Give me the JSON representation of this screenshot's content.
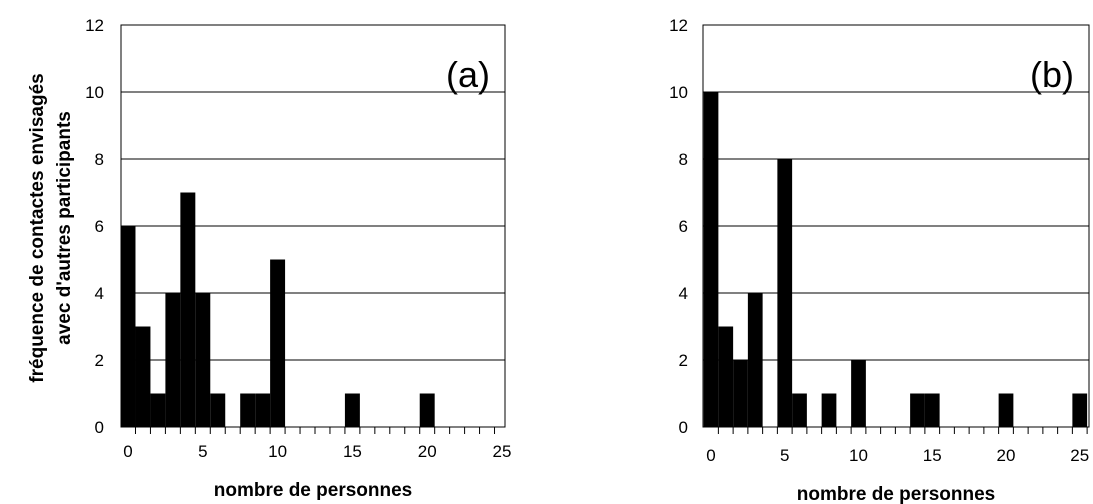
{
  "chart_data": [
    {
      "type": "bar",
      "panel_label": "(a)",
      "x": [
        0,
        1,
        2,
        3,
        4,
        5,
        6,
        7,
        8,
        9,
        10,
        11,
        12,
        13,
        14,
        15,
        16,
        17,
        18,
        19,
        20,
        21,
        22,
        23,
        24,
        25
      ],
      "values": [
        6,
        3,
        1,
        4,
        7,
        4,
        1,
        0,
        1,
        1,
        5,
        0,
        0,
        0,
        0,
        1,
        0,
        0,
        0,
        0,
        1,
        0,
        0,
        0,
        0,
        0
      ],
      "xlabel": "nombre de personnes",
      "ylabel_line1": "fréquence de contactes envisagés",
      "ylabel_line2": "avec d'autres participants",
      "xlim": [
        0,
        25
      ],
      "ylim": [
        0,
        12
      ],
      "x_ticks": [
        "0",
        "5",
        "10",
        "15",
        "20",
        "25"
      ],
      "y_ticks": [
        "0",
        "2",
        "4",
        "6",
        "8",
        "10",
        "12"
      ],
      "grid": "horizontal"
    },
    {
      "type": "bar",
      "panel_label": "(b)",
      "x": [
        0,
        1,
        2,
        3,
        4,
        5,
        6,
        7,
        8,
        9,
        10,
        11,
        12,
        13,
        14,
        15,
        16,
        17,
        18,
        19,
        20,
        21,
        22,
        23,
        24,
        25
      ],
      "values": [
        10,
        3,
        2,
        4,
        0,
        8,
        1,
        0,
        1,
        0,
        2,
        0,
        0,
        0,
        1,
        1,
        0,
        0,
        0,
        0,
        1,
        0,
        0,
        0,
        0,
        1
      ],
      "xlabel": "nombre de personnes",
      "xlim": [
        0,
        25
      ],
      "ylim": [
        0,
        12
      ],
      "x_ticks": [
        "0",
        "5",
        "10",
        "15",
        "20",
        "25"
      ],
      "y_ticks": [
        "0",
        "2",
        "4",
        "6",
        "8",
        "10",
        "12"
      ],
      "grid": "horizontal"
    }
  ],
  "colors": {
    "bars": "#000000",
    "axes": "#000000",
    "grid": "#000000",
    "background": "#ffffff"
  }
}
